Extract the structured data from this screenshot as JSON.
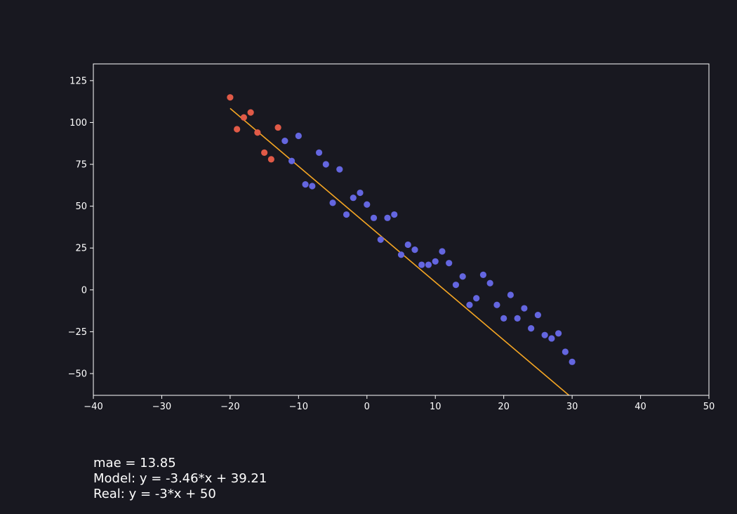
{
  "chart_data": {
    "type": "scatter",
    "xlim": [
      -40,
      50
    ],
    "ylim": [
      -63,
      135
    ],
    "x_ticks": [
      -40,
      -30,
      -20,
      -10,
      0,
      10,
      20,
      30,
      40,
      50
    ],
    "y_ticks": [
      -50,
      -25,
      0,
      25,
      50,
      75,
      100,
      125
    ],
    "x_tick_labels": [
      "−40",
      "−30",
      "−20",
      "−10",
      "0",
      "10",
      "20",
      "30",
      "40",
      "50"
    ],
    "y_tick_labels": [
      "−50",
      "−25",
      "0",
      "25",
      "50",
      "75",
      "100",
      "125"
    ],
    "grid": false,
    "series": [
      {
        "color": "#e05a47",
        "points": [
          [
            -20,
            115
          ],
          [
            -19,
            96
          ],
          [
            -18,
            103
          ],
          [
            -17,
            106
          ],
          [
            -16,
            94
          ],
          [
            -15,
            82
          ],
          [
            -14,
            78
          ],
          [
            -13,
            97
          ]
        ]
      },
      {
        "color": "#6466e0",
        "points": [
          [
            -12,
            89
          ],
          [
            -11,
            77
          ],
          [
            -10,
            92
          ],
          [
            -9,
            63
          ],
          [
            -8,
            62
          ],
          [
            -7,
            82
          ],
          [
            -6,
            75
          ],
          [
            -5,
            52
          ],
          [
            -4,
            72
          ],
          [
            -3,
            45
          ],
          [
            -2,
            55
          ],
          [
            -1,
            58
          ],
          [
            0,
            51
          ],
          [
            1,
            43
          ],
          [
            2,
            30
          ],
          [
            3,
            43
          ],
          [
            4,
            45
          ],
          [
            5,
            21
          ],
          [
            6,
            27
          ],
          [
            7,
            24
          ],
          [
            8,
            15
          ],
          [
            9,
            15
          ],
          [
            10,
            17
          ],
          [
            11,
            23
          ],
          [
            12,
            16
          ],
          [
            13,
            3
          ],
          [
            14,
            8
          ],
          [
            15,
            -9
          ],
          [
            16,
            -5
          ],
          [
            17,
            9
          ],
          [
            18,
            4
          ],
          [
            19,
            -9
          ],
          [
            20,
            -17
          ],
          [
            21,
            -3
          ],
          [
            22,
            -17
          ],
          [
            23,
            -11
          ],
          [
            24,
            -23
          ],
          [
            25,
            -15
          ],
          [
            26,
            -27
          ],
          [
            27,
            -29
          ],
          [
            28,
            -26
          ],
          [
            29,
            -37
          ],
          [
            30,
            -43
          ]
        ]
      }
    ],
    "fit_line": {
      "color": "#f5a623",
      "slope": -3.46,
      "intercept": 39.21,
      "x_range": [
        -20,
        30
      ]
    }
  },
  "info": {
    "mae": "mae = 13.85",
    "model": "Model: y = -3.46*x + 39.21",
    "real": "Real: y = -3*x + 50"
  }
}
